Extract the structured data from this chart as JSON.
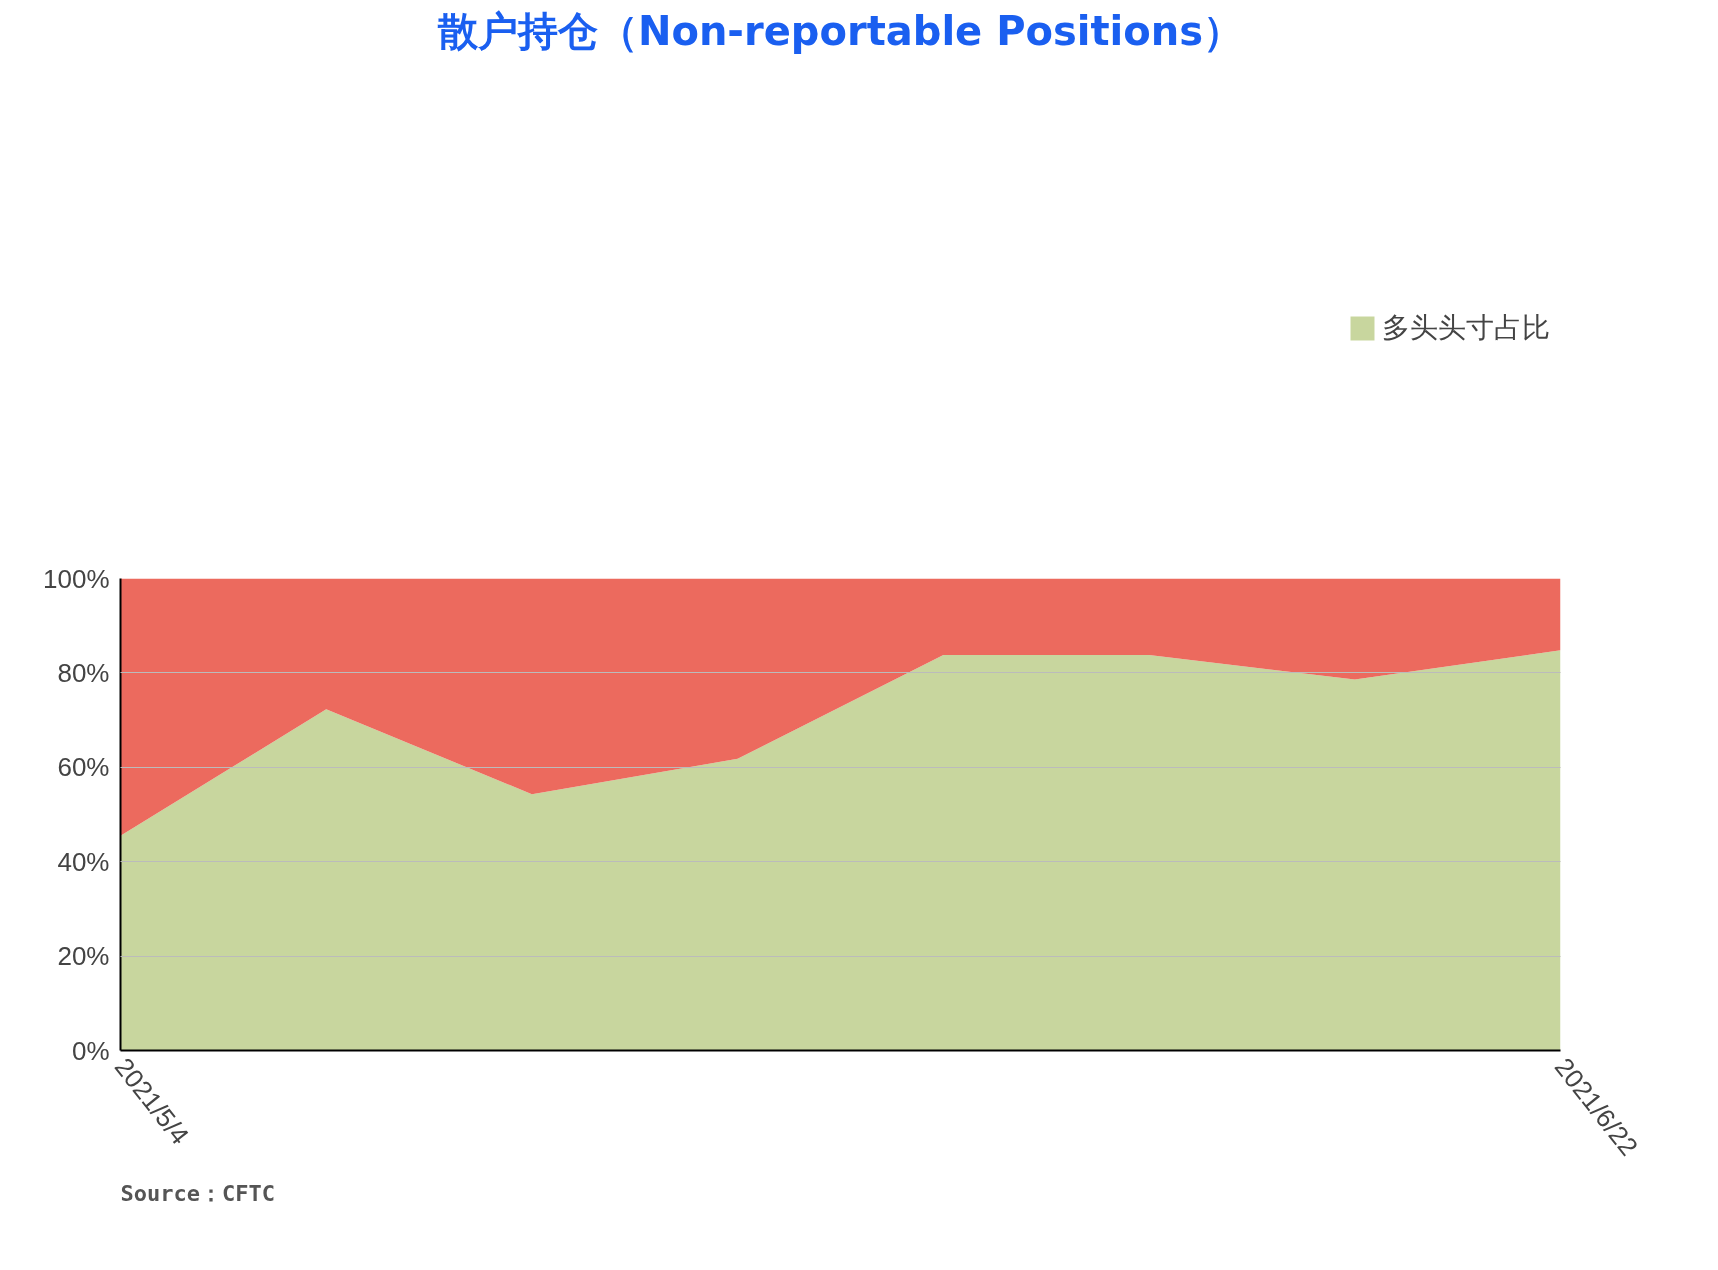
{
  "chart_data": {
    "type": "area",
    "title": "散户持仓（Non-reportable Positions）",
    "categories": [
      "2021/5/4",
      null,
      null,
      null,
      null,
      null,
      null,
      "2021/6/22"
    ],
    "stacked": true,
    "series": [
      {
        "name": "多头头寸占比",
        "color": "#c8d69e",
        "values": [
          45.5,
          72.3,
          54.3,
          61.8,
          83.8,
          83.8,
          78.6,
          84.8
        ]
      },
      {
        "color": "#ec6a5e",
        "values": [
          54.5,
          27.7,
          45.7,
          38.2,
          16.2,
          16.2,
          21.4,
          15.2
        ]
      }
    ],
    "ylim": [
      0,
      100
    ],
    "yticks": [
      {
        "value": 0,
        "label": "0%"
      },
      {
        "value": 20,
        "label": "20%"
      },
      {
        "value": 40,
        "label": "40%"
      },
      {
        "value": 60,
        "label": "60%"
      },
      {
        "value": 80,
        "label": "80%"
      },
      {
        "value": 100,
        "label": "100%"
      }
    ],
    "grid": "y",
    "legend": "top right",
    "annotations": [
      "Source：CFTC"
    ]
  }
}
